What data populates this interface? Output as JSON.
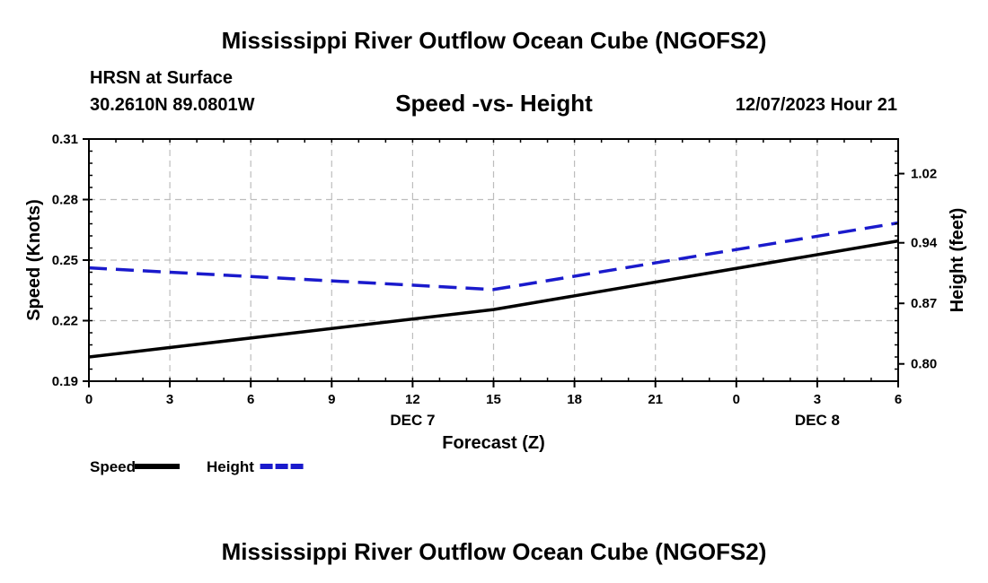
{
  "header": {
    "title": "Mississippi River Outflow Ocean Cube (NGOFS2)",
    "station": "HRSN at Surface",
    "location": "30.2610N  89.0801W",
    "subtitle": "Speed -vs- Height",
    "datetime": "12/07/2023 Hour 21"
  },
  "footer": {
    "title": "Mississippi River Outflow Ocean Cube (NGOFS2)"
  },
  "chart_data": {
    "type": "line",
    "title": "Speed -vs- Height",
    "xlabel": "Forecast (Z)",
    "ylabel": "Speed (Knots)",
    "y2label": "Height (feet)",
    "x": [
      0,
      3,
      6,
      9,
      12,
      15,
      18,
      21,
      24,
      27,
      30
    ],
    "xlim": [
      0,
      30
    ],
    "x_tick_labels": [
      "0",
      "3",
      "6",
      "9",
      "12",
      "15",
      "18",
      "21",
      "0",
      "3",
      "6"
    ],
    "date_labels": [
      {
        "x": 12,
        "label": "DEC 7"
      },
      {
        "x": 27,
        "label": "DEC 8"
      }
    ],
    "ylim": [
      0.19,
      0.31
    ],
    "y_ticks": [
      0.19,
      0.22,
      0.25,
      0.28,
      0.31
    ],
    "y_tick_labels": [
      "0.19",
      "0.22",
      "0.25",
      "0.28",
      "0.31"
    ],
    "y2lim": [
      0.78,
      1.06
    ],
    "y2_ticks": [
      0.8,
      0.87,
      0.94,
      1.02
    ],
    "y2_tick_labels": [
      "0.80",
      "0.87",
      "0.94",
      "1.02"
    ],
    "grid": true,
    "series": [
      {
        "name": "Speed",
        "axis": "left",
        "color": "#000000",
        "style": "solid",
        "points": [
          [
            0,
            0.202
          ],
          [
            15,
            0.2255
          ],
          [
            30,
            0.2595
          ]
        ]
      },
      {
        "name": "Height",
        "axis": "right",
        "color": "#1a1acc",
        "style": "dashed",
        "points": [
          [
            0,
            0.911
          ],
          [
            15,
            0.886
          ],
          [
            30,
            0.963
          ]
        ]
      }
    ],
    "legend": {
      "placement": "bottom-left",
      "entries": [
        {
          "label": "Speed",
          "color": "#000000",
          "style": "solid"
        },
        {
          "label": "Height",
          "color": "#1a1acc",
          "style": "dashed"
        }
      ]
    }
  }
}
